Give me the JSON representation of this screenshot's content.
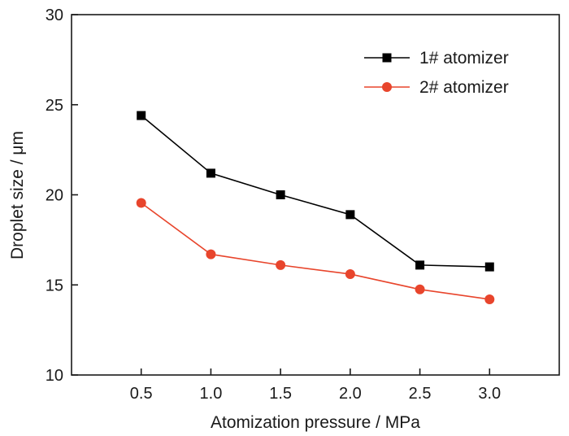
{
  "chart_data": {
    "type": "line",
    "xlabel": "Atomization pressure / MPa",
    "ylabel": "Droplet size / μm",
    "x": [
      0.5,
      1.0,
      1.5,
      2.0,
      2.5,
      3.0
    ],
    "x_tick_labels": [
      "0.5",
      "1.0",
      "1.5",
      "2.0",
      "2.5",
      "3.0"
    ],
    "xlim": [
      0.0,
      3.5
    ],
    "y_ticks": [
      10,
      15,
      20,
      25,
      30
    ],
    "y_tick_labels": [
      "10",
      "15",
      "20",
      "25",
      "30"
    ],
    "ylim": [
      10,
      30
    ],
    "grid": false,
    "legend_position": "top-right",
    "series": [
      {
        "name": "1# atomizer",
        "marker": "square",
        "color": "#000000",
        "values": [
          24.4,
          21.2,
          20.0,
          18.9,
          16.1,
          16.0
        ]
      },
      {
        "name": "2# atomizer",
        "marker": "circle",
        "color": "#e8452c",
        "values": [
          19.55,
          16.7,
          16.1,
          15.6,
          14.75,
          14.2
        ]
      }
    ]
  }
}
